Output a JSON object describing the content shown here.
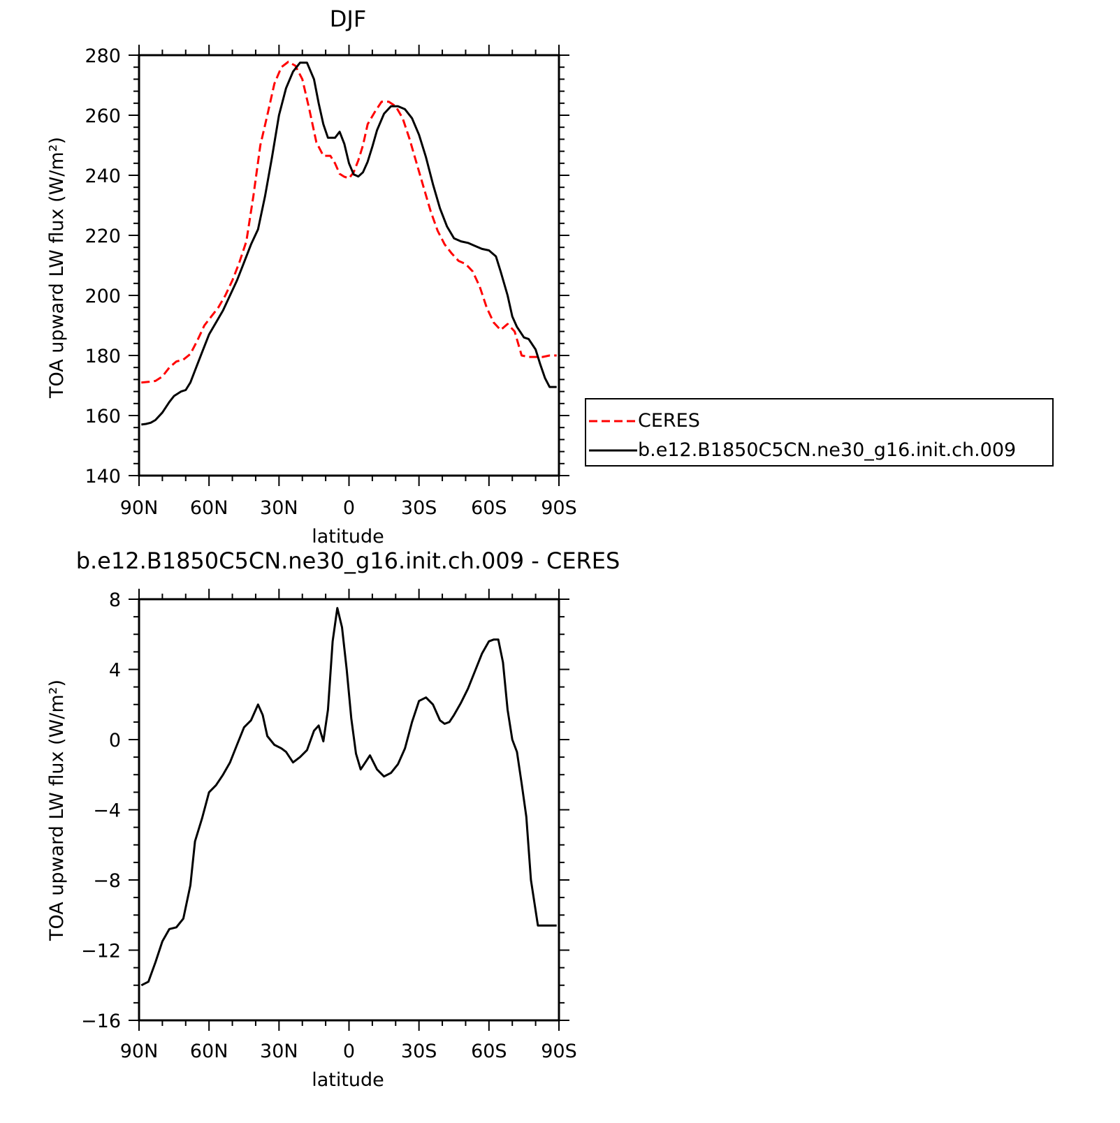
{
  "chart_data": [
    {
      "type": "line",
      "title": "DJF",
      "xlabel": "latitude",
      "ylabel": "TOA upward LW flux (W/m²)",
      "xlim": [
        90,
        -90
      ],
      "ylim": [
        140,
        280
      ],
      "yticks": [
        140,
        160,
        180,
        200,
        220,
        240,
        260,
        280
      ],
      "xticks": [
        {
          "value": 90,
          "label": "90N"
        },
        {
          "value": 60,
          "label": "60N"
        },
        {
          "value": 30,
          "label": "30N"
        },
        {
          "value": 0,
          "label": "0"
        },
        {
          "value": -30,
          "label": "30S"
        },
        {
          "value": -60,
          "label": "60S"
        },
        {
          "value": -90,
          "label": "90S"
        }
      ],
      "legend": "right",
      "series": [
        {
          "name": "CERES",
          "color": "#ff0000",
          "dash": "dashed",
          "x": [
            89,
            86,
            83,
            80,
            77,
            74,
            71,
            68,
            65,
            62,
            59,
            56,
            53,
            50,
            47,
            44,
            41,
            38,
            35,
            32,
            29,
            26,
            23,
            20,
            17,
            14,
            11,
            8,
            6,
            4,
            2,
            0,
            -2,
            -4,
            -6,
            -8,
            -11,
            -14,
            -17,
            -20,
            -23,
            -26,
            -29,
            -32,
            -35,
            -38,
            -41,
            -44,
            -47,
            -50,
            -53,
            -56,
            -59,
            -62,
            -65,
            -68,
            -71,
            -74,
            -77,
            -80,
            -83,
            -86,
            -89
          ],
          "y": [
            171,
            171.2,
            171.5,
            173,
            176,
            178,
            178.6,
            180.5,
            185,
            190,
            193,
            196,
            200,
            205,
            211,
            218,
            233,
            250,
            260,
            270.5,
            276,
            277.8,
            276.5,
            272,
            262,
            251,
            246.5,
            246.5,
            244,
            240.5,
            239.5,
            239,
            241,
            245,
            250,
            257,
            261,
            264.5,
            264.5,
            263,
            259,
            252,
            244,
            236,
            228,
            221.5,
            217,
            214,
            211.5,
            210.5,
            208,
            203,
            196,
            191,
            188.5,
            190.5,
            188,
            180,
            179.5,
            179.5,
            179.5,
            180,
            180
          ]
        },
        {
          "name": "b.e12.B1850C5CN.ne30_g16.init.ch.009",
          "color": "#000000",
          "dash": "solid",
          "x": [
            89,
            87,
            85,
            83,
            80,
            77,
            75,
            72,
            70,
            68,
            66,
            63,
            60,
            57,
            54,
            51,
            48,
            45,
            42,
            39,
            36,
            33,
            30,
            27,
            24,
            21,
            18,
            15,
            13,
            11,
            9,
            6,
            4,
            2,
            0,
            -2,
            -4,
            -6,
            -8,
            -10,
            -12,
            -15,
            -18,
            -21,
            -24,
            -27,
            -30,
            -33,
            -36,
            -39,
            -42,
            -45,
            -48,
            -51,
            -54,
            -57,
            -60,
            -63,
            -65,
            -68,
            -70,
            -72,
            -75,
            -77,
            -80,
            -82,
            -84,
            -86,
            -88,
            -89
          ],
          "y": [
            157,
            157.2,
            157.6,
            158.5,
            161,
            164.5,
            166.5,
            168,
            168.5,
            171,
            175,
            181,
            187,
            191,
            195,
            200,
            205,
            211,
            217,
            222,
            233,
            246,
            260,
            269,
            274.5,
            277.5,
            277.5,
            272,
            264,
            257,
            252.5,
            252.5,
            254.5,
            250.5,
            244,
            240.3,
            239.6,
            241,
            244.5,
            249.5,
            255,
            260.5,
            263,
            263,
            262,
            259,
            253.5,
            246,
            237,
            229,
            223,
            219,
            218,
            217.5,
            216.5,
            215.5,
            215,
            213,
            208,
            200,
            193,
            189.5,
            186,
            185.5,
            182,
            177,
            172.5,
            169.5,
            169.5,
            169.5
          ]
        }
      ]
    },
    {
      "type": "line",
      "title": "b.e12.B1850C5CN.ne30_g16.init.ch.009 - CERES",
      "xlabel": "latitude",
      "ylabel": "TOA upward LW flux (W/m²)",
      "xlim": [
        90,
        -90
      ],
      "ylim": [
        -16,
        8
      ],
      "yticks": [
        -16,
        -12,
        -8,
        -4,
        0,
        4,
        8
      ],
      "ytick_labels": [
        "−16",
        "−12",
        "−8",
        "−4",
        "0",
        "4",
        "8"
      ],
      "xticks": [
        {
          "value": 90,
          "label": "90N"
        },
        {
          "value": 60,
          "label": "60N"
        },
        {
          "value": 30,
          "label": "30N"
        },
        {
          "value": 0,
          "label": "0"
        },
        {
          "value": -30,
          "label": "30S"
        },
        {
          "value": -60,
          "label": "60S"
        },
        {
          "value": -90,
          "label": "90S"
        }
      ],
      "series": [
        {
          "color": "#000000",
          "dash": "solid",
          "x": [
            89,
            86,
            83,
            80,
            77,
            74,
            71,
            68,
            66,
            63,
            60,
            57,
            54,
            51,
            48,
            45,
            42,
            39,
            37,
            35,
            32,
            29,
            27,
            24,
            21,
            18,
            15,
            13,
            11,
            9,
            7,
            5,
            3,
            1,
            -1,
            -3,
            -5,
            -7,
            -9,
            -12,
            -15,
            -18,
            -21,
            -24,
            -27,
            -30,
            -33,
            -36,
            -39,
            -41,
            -43,
            -45,
            -48,
            -51,
            -54,
            -57,
            -60,
            -62,
            -64,
            -66,
            -68,
            -70,
            -72,
            -74,
            -76,
            -78,
            -81,
            -84,
            -86,
            -89
          ],
          "y": [
            -14,
            -13.8,
            -12.7,
            -11.5,
            -10.8,
            -10.7,
            -10.2,
            -8.3,
            -5.8,
            -4.5,
            -3,
            -2.6,
            -2,
            -1.3,
            -0.3,
            0.7,
            1.1,
            2,
            1.4,
            0.2,
            -0.3,
            -0.5,
            -0.7,
            -1.3,
            -1,
            -0.6,
            0.5,
            0.8,
            -0.1,
            1.7,
            5.6,
            7.5,
            6.4,
            4,
            1.2,
            -0.8,
            -1.7,
            -1.3,
            -0.9,
            -1.7,
            -2.1,
            -1.9,
            -1.4,
            -0.5,
            1,
            2.2,
            2.4,
            2,
            1.1,
            0.9,
            1,
            1.4,
            2.1,
            2.9,
            3.9,
            4.9,
            5.6,
            5.7,
            5.7,
            4.4,
            1.7,
            0,
            -0.7,
            -2.5,
            -4.4,
            -8,
            -10.6,
            -10.6,
            -10.6,
            -10.6
          ]
        }
      ]
    }
  ]
}
